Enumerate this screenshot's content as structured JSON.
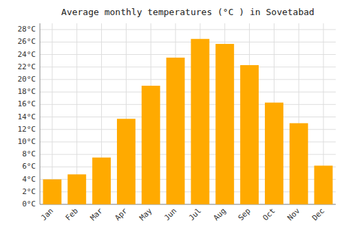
{
  "chart_data": {
    "type": "bar",
    "title": "Average monthly temperatures (°C ) in Sovetabad",
    "categories": [
      "Jan",
      "Feb",
      "Mar",
      "Apr",
      "May",
      "Jun",
      "Jul",
      "Aug",
      "Sep",
      "Oct",
      "Nov",
      "Dec"
    ],
    "values": [
      4.0,
      4.8,
      7.5,
      13.7,
      19.0,
      23.5,
      26.5,
      25.7,
      22.3,
      16.3,
      13.0,
      6.2
    ],
    "color": "#FFAA00",
    "ylim": [
      0,
      29
    ],
    "yticks": [
      {
        "value": 0,
        "label": "0°C"
      },
      {
        "value": 2,
        "label": "2°C"
      },
      {
        "value": 4,
        "label": "4°C"
      },
      {
        "value": 6,
        "label": "6°C"
      },
      {
        "value": 8,
        "label": "8°C"
      },
      {
        "value": 10,
        "label": "10°C"
      },
      {
        "value": 12,
        "label": "12°C"
      },
      {
        "value": 14,
        "label": "14°C"
      },
      {
        "value": 16,
        "label": "16°C"
      },
      {
        "value": 18,
        "label": "18°C"
      },
      {
        "value": 20,
        "label": "20°C"
      },
      {
        "value": 22,
        "label": "22°C"
      },
      {
        "value": 24,
        "label": "24°C"
      },
      {
        "value": 26,
        "label": "26°C"
      },
      {
        "value": 28,
        "label": "28°C"
      }
    ],
    "grid": true
  }
}
